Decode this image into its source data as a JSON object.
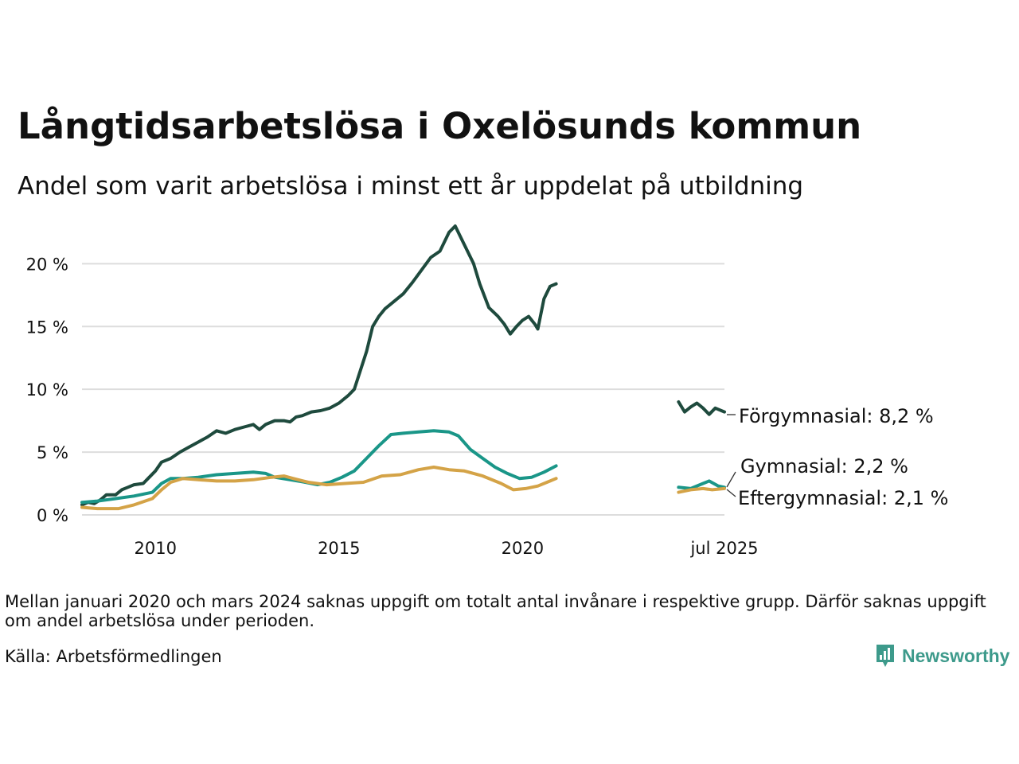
{
  "header": {
    "title": "Långtidsarbetslösa i Oxelösunds kommun",
    "subtitle": "Andel som varit arbetslösa i minst ett år uppdelat på utbildning"
  },
  "footer": {
    "note": "Mellan januari 2020 och mars 2024 saknas uppgift om totalt antal invånare i respektive grupp. Därför saknas uppgift om andel arbetslösa under perioden.",
    "source": "Källa: Arbetsförmedlingen",
    "brand": "Newsworthy",
    "brand_icon": "newsworthy-logo-icon"
  },
  "colors": {
    "forgymnasial": "#1e4a3d",
    "gymnasial": "#1a9688",
    "eftergymnasial": "#d4a347",
    "grid": "#dddddd",
    "brand": "#3d9a8b"
  },
  "chart_data": {
    "type": "line",
    "title": "Långtidsarbetslösa i Oxelösunds kommun",
    "subtitle": "Andel som varit arbetslösa i minst ett år uppdelat på utbildning",
    "x_type": "date",
    "xlim": [
      "2008-01",
      "2025-07"
    ],
    "ylim": [
      0,
      23
    ],
    "y_unit": "%",
    "grid": true,
    "x_ticks": [
      {
        "date": "2010-01",
        "label": "2010"
      },
      {
        "date": "2015-01",
        "label": "2015"
      },
      {
        "date": "2020-01",
        "label": "2020"
      },
      {
        "date": "2025-07",
        "label": "jul 2025"
      }
    ],
    "y_ticks": [
      {
        "value": 0,
        "label": "0 %"
      },
      {
        "value": 5,
        "label": "5 %"
      },
      {
        "value": 10,
        "label": "10 %"
      },
      {
        "value": 15,
        "label": "15 %"
      },
      {
        "value": 20,
        "label": "20 %"
      }
    ],
    "gap": {
      "from": "2020-12",
      "to": "2024-04"
    },
    "series": [
      {
        "name": "Förgymnasial",
        "end_label": "Förgymnasial: 8,2 %",
        "color": "#1e4a3d",
        "segments": [
          [
            [
              "2008-01",
              0.8
            ],
            [
              "2008-03",
              1.0
            ],
            [
              "2008-05",
              0.9
            ],
            [
              "2008-07",
              1.2
            ],
            [
              "2008-09",
              1.6
            ],
            [
              "2008-12",
              1.6
            ],
            [
              "2009-02",
              2.0
            ],
            [
              "2009-04",
              2.2
            ],
            [
              "2009-06",
              2.4
            ],
            [
              "2009-09",
              2.5
            ],
            [
              "2009-11",
              3.0
            ],
            [
              "2010-01",
              3.5
            ],
            [
              "2010-03",
              4.2
            ],
            [
              "2010-06",
              4.5
            ],
            [
              "2010-09",
              5.0
            ],
            [
              "2010-12",
              5.4
            ],
            [
              "2011-03",
              5.8
            ],
            [
              "2011-06",
              6.2
            ],
            [
              "2011-09",
              6.7
            ],
            [
              "2011-12",
              6.5
            ],
            [
              "2012-03",
              6.8
            ],
            [
              "2012-06",
              7.0
            ],
            [
              "2012-09",
              7.2
            ],
            [
              "2012-11",
              6.8
            ],
            [
              "2013-01",
              7.2
            ],
            [
              "2013-04",
              7.5
            ],
            [
              "2013-07",
              7.5
            ],
            [
              "2013-09",
              7.4
            ],
            [
              "2013-11",
              7.8
            ],
            [
              "2014-01",
              7.9
            ],
            [
              "2014-04",
              8.2
            ],
            [
              "2014-07",
              8.3
            ],
            [
              "2014-10",
              8.5
            ],
            [
              "2015-01",
              8.9
            ],
            [
              "2015-04",
              9.5
            ],
            [
              "2015-06",
              10.0
            ],
            [
              "2015-08",
              11.5
            ],
            [
              "2015-10",
              13.0
            ],
            [
              "2015-12",
              15.0
            ],
            [
              "2016-02",
              15.8
            ],
            [
              "2016-04",
              16.4
            ],
            [
              "2016-07",
              17.0
            ],
            [
              "2016-10",
              17.6
            ],
            [
              "2017-01",
              18.5
            ],
            [
              "2017-04",
              19.5
            ],
            [
              "2017-07",
              20.5
            ],
            [
              "2017-10",
              21.0
            ],
            [
              "2018-01",
              22.5
            ],
            [
              "2018-03",
              23.0
            ],
            [
              "2018-06",
              21.5
            ],
            [
              "2018-09",
              20.0
            ],
            [
              "2018-11",
              18.4
            ],
            [
              "2019-02",
              16.5
            ],
            [
              "2019-05",
              15.8
            ],
            [
              "2019-07",
              15.2
            ],
            [
              "2019-09",
              14.4
            ],
            [
              "2019-11",
              15.0
            ],
            [
              "2020-01",
              15.5
            ],
            [
              "2020-03",
              15.8
            ],
            [
              "2020-05",
              15.2
            ],
            [
              "2020-06",
              14.8
            ],
            [
              "2020-08",
              17.2
            ],
            [
              "2020-10",
              18.2
            ],
            [
              "2020-12",
              18.4
            ]
          ],
          [
            [
              "2024-04",
              9.0
            ],
            [
              "2024-06",
              8.2
            ],
            [
              "2024-08",
              8.6
            ],
            [
              "2024-10",
              8.9
            ],
            [
              "2024-12",
              8.5
            ],
            [
              "2025-02",
              8.0
            ],
            [
              "2025-04",
              8.5
            ],
            [
              "2025-07",
              8.2
            ]
          ]
        ]
      },
      {
        "name": "Gymnasial",
        "end_label": "Gymnasial: 2,2 %",
        "color": "#1a9688",
        "segments": [
          [
            [
              "2008-01",
              1.0
            ],
            [
              "2008-06",
              1.1
            ],
            [
              "2008-12",
              1.3
            ],
            [
              "2009-06",
              1.5
            ],
            [
              "2009-12",
              1.8
            ],
            [
              "2010-03",
              2.5
            ],
            [
              "2010-06",
              2.9
            ],
            [
              "2010-10",
              2.9
            ],
            [
              "2011-03",
              3.0
            ],
            [
              "2011-09",
              3.2
            ],
            [
              "2012-03",
              3.3
            ],
            [
              "2012-09",
              3.4
            ],
            [
              "2013-01",
              3.3
            ],
            [
              "2013-04",
              3.0
            ],
            [
              "2013-09",
              2.8
            ],
            [
              "2014-02",
              2.6
            ],
            [
              "2014-06",
              2.4
            ],
            [
              "2014-10",
              2.6
            ],
            [
              "2015-02",
              3.0
            ],
            [
              "2015-06",
              3.5
            ],
            [
              "2015-10",
              4.5
            ],
            [
              "2016-02",
              5.5
            ],
            [
              "2016-06",
              6.4
            ],
            [
              "2016-10",
              6.5
            ],
            [
              "2017-03",
              6.6
            ],
            [
              "2017-08",
              6.7
            ],
            [
              "2018-01",
              6.6
            ],
            [
              "2018-04",
              6.3
            ],
            [
              "2018-08",
              5.2
            ],
            [
              "2018-12",
              4.5
            ],
            [
              "2019-04",
              3.8
            ],
            [
              "2019-08",
              3.3
            ],
            [
              "2019-12",
              2.9
            ],
            [
              "2020-04",
              3.0
            ],
            [
              "2020-08",
              3.4
            ],
            [
              "2020-12",
              3.9
            ]
          ],
          [
            [
              "2024-04",
              2.2
            ],
            [
              "2024-08",
              2.1
            ],
            [
              "2024-12",
              2.5
            ],
            [
              "2025-02",
              2.7
            ],
            [
              "2025-05",
              2.3
            ],
            [
              "2025-07",
              2.2
            ]
          ]
        ]
      },
      {
        "name": "Eftergymnasial",
        "end_label": "Eftergymnasial: 2,1 %",
        "color": "#d4a347",
        "segments": [
          [
            [
              "2008-01",
              0.6
            ],
            [
              "2008-06",
              0.5
            ],
            [
              "2009-01",
              0.5
            ],
            [
              "2009-06",
              0.8
            ],
            [
              "2009-12",
              1.3
            ],
            [
              "2010-03",
              2.0
            ],
            [
              "2010-06",
              2.6
            ],
            [
              "2010-10",
              2.9
            ],
            [
              "2011-03",
              2.8
            ],
            [
              "2011-09",
              2.7
            ],
            [
              "2012-03",
              2.7
            ],
            [
              "2012-09",
              2.8
            ],
            [
              "2013-03",
              3.0
            ],
            [
              "2013-07",
              3.1
            ],
            [
              "2013-10",
              2.9
            ],
            [
              "2014-03",
              2.6
            ],
            [
              "2014-09",
              2.4
            ],
            [
              "2015-03",
              2.5
            ],
            [
              "2015-09",
              2.6
            ],
            [
              "2016-03",
              3.1
            ],
            [
              "2016-09",
              3.2
            ],
            [
              "2017-03",
              3.6
            ],
            [
              "2017-08",
              3.8
            ],
            [
              "2018-01",
              3.6
            ],
            [
              "2018-06",
              3.5
            ],
            [
              "2018-12",
              3.1
            ],
            [
              "2019-06",
              2.5
            ],
            [
              "2019-10",
              2.0
            ],
            [
              "2020-02",
              2.1
            ],
            [
              "2020-06",
              2.3
            ],
            [
              "2020-10",
              2.7
            ],
            [
              "2020-12",
              2.9
            ]
          ],
          [
            [
              "2024-04",
              1.8
            ],
            [
              "2024-08",
              2.0
            ],
            [
              "2024-12",
              2.1
            ],
            [
              "2025-03",
              2.0
            ],
            [
              "2025-07",
              2.1
            ]
          ]
        ]
      }
    ]
  }
}
